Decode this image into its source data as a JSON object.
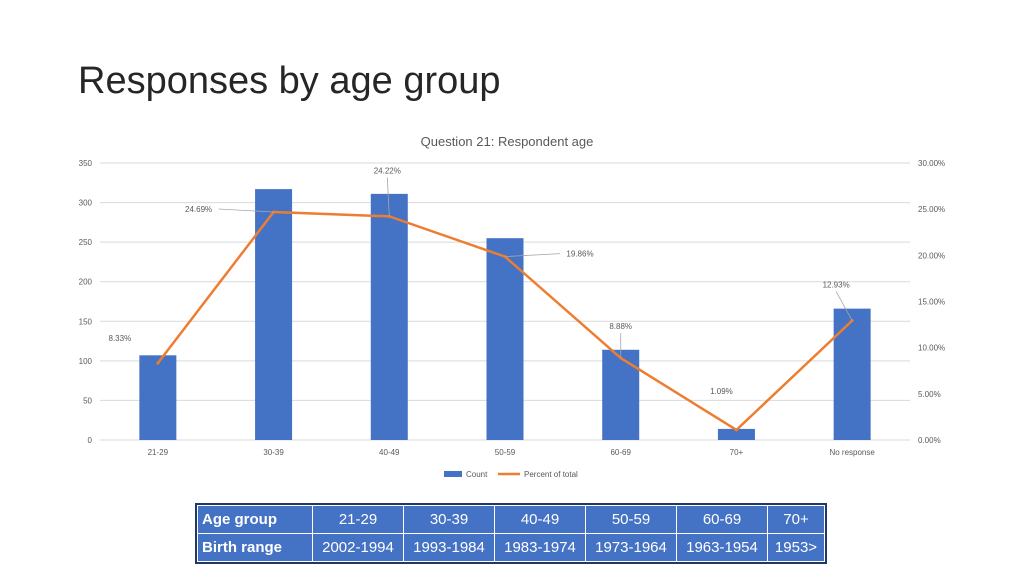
{
  "slide": {
    "title": "Responses by age group"
  },
  "colors": {
    "bar": "#4472C4",
    "line": "#ED7D31",
    "grid": "#D9D9D9",
    "table_bg": "#4472C4",
    "table_border": "#1F3864"
  },
  "chart_data": {
    "type": "bar",
    "title": "Question 21: Respondent age",
    "categories": [
      "21-29",
      "30-39",
      "40-49",
      "50-59",
      "60-69",
      "70+",
      "No response"
    ],
    "series": [
      {
        "name": "Count",
        "type": "bar",
        "axis": "left",
        "values": [
          107,
          317,
          311,
          255,
          114,
          14,
          166
        ]
      },
      {
        "name": "Percent of total",
        "type": "line",
        "axis": "right",
        "values": [
          8.33,
          24.69,
          24.22,
          19.86,
          8.88,
          1.09,
          12.93
        ],
        "labels": [
          "8.33%",
          "24.69%",
          "24.22%",
          "19.86%",
          "8.88%",
          "1.09%",
          "12.93%"
        ]
      }
    ],
    "y_left": {
      "range": [
        0,
        350
      ],
      "ticks": [
        "0",
        "50",
        "100",
        "150",
        "200",
        "250",
        "300",
        "350"
      ]
    },
    "y_right": {
      "range": [
        0,
        30
      ],
      "ticks": [
        "0.00%",
        "5.00%",
        "10.00%",
        "15.00%",
        "20.00%",
        "25.00%",
        "30.00%"
      ]
    },
    "grid": true,
    "legend": {
      "position": "bottom",
      "entries": [
        "Count",
        "Percent of total"
      ]
    }
  },
  "table": {
    "rows": [
      [
        "Age group",
        "21-29",
        "30-39",
        "40-49",
        "50-59",
        "60-69",
        "70+"
      ],
      [
        "Birth range",
        "2002-1994",
        "1993-1984",
        "1983-1974",
        "1973-1964",
        "1963-1954",
        "1953>"
      ]
    ]
  }
}
